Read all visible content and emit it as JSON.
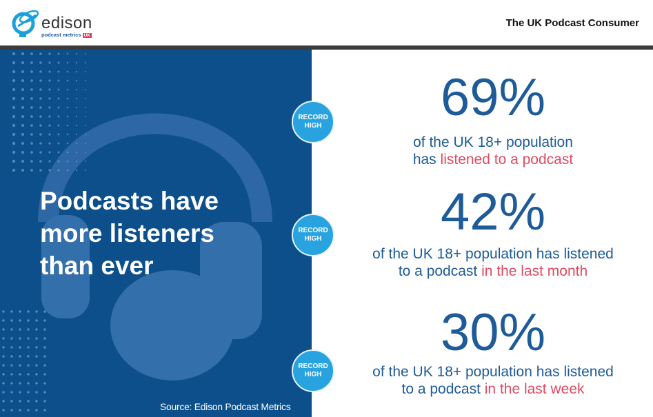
{
  "header": {
    "logo_word": "edison",
    "logo_sub": "podcast metrics",
    "logo_badge": "UK",
    "title": "The UK Podcast Consumer"
  },
  "panel": {
    "headline_lines": [
      "Podcasts have",
      "more listeners",
      "than ever"
    ],
    "source": "Source: Edison Podcast Metrics"
  },
  "badge": {
    "line1": "RECORD",
    "line2": "HIGH"
  },
  "stats": [
    {
      "value": "69%",
      "desc_a": "of the UK 18+ population",
      "desc_b": "has ",
      "highlight": "listened to a podcast"
    },
    {
      "value": "42%",
      "desc_a": "of the UK 18+ population has listened",
      "desc_b": "to a podcast ",
      "highlight": "in the last month"
    },
    {
      "value": "30%",
      "desc_a": "of the UK 18+ population has listened",
      "desc_b": "to a podcast ",
      "highlight": "in the last week"
    }
  ],
  "colors": {
    "panel": "#0c4f8b",
    "text": "#1e5b98",
    "highlight": "#e04a62",
    "badge": "#29a3df"
  }
}
